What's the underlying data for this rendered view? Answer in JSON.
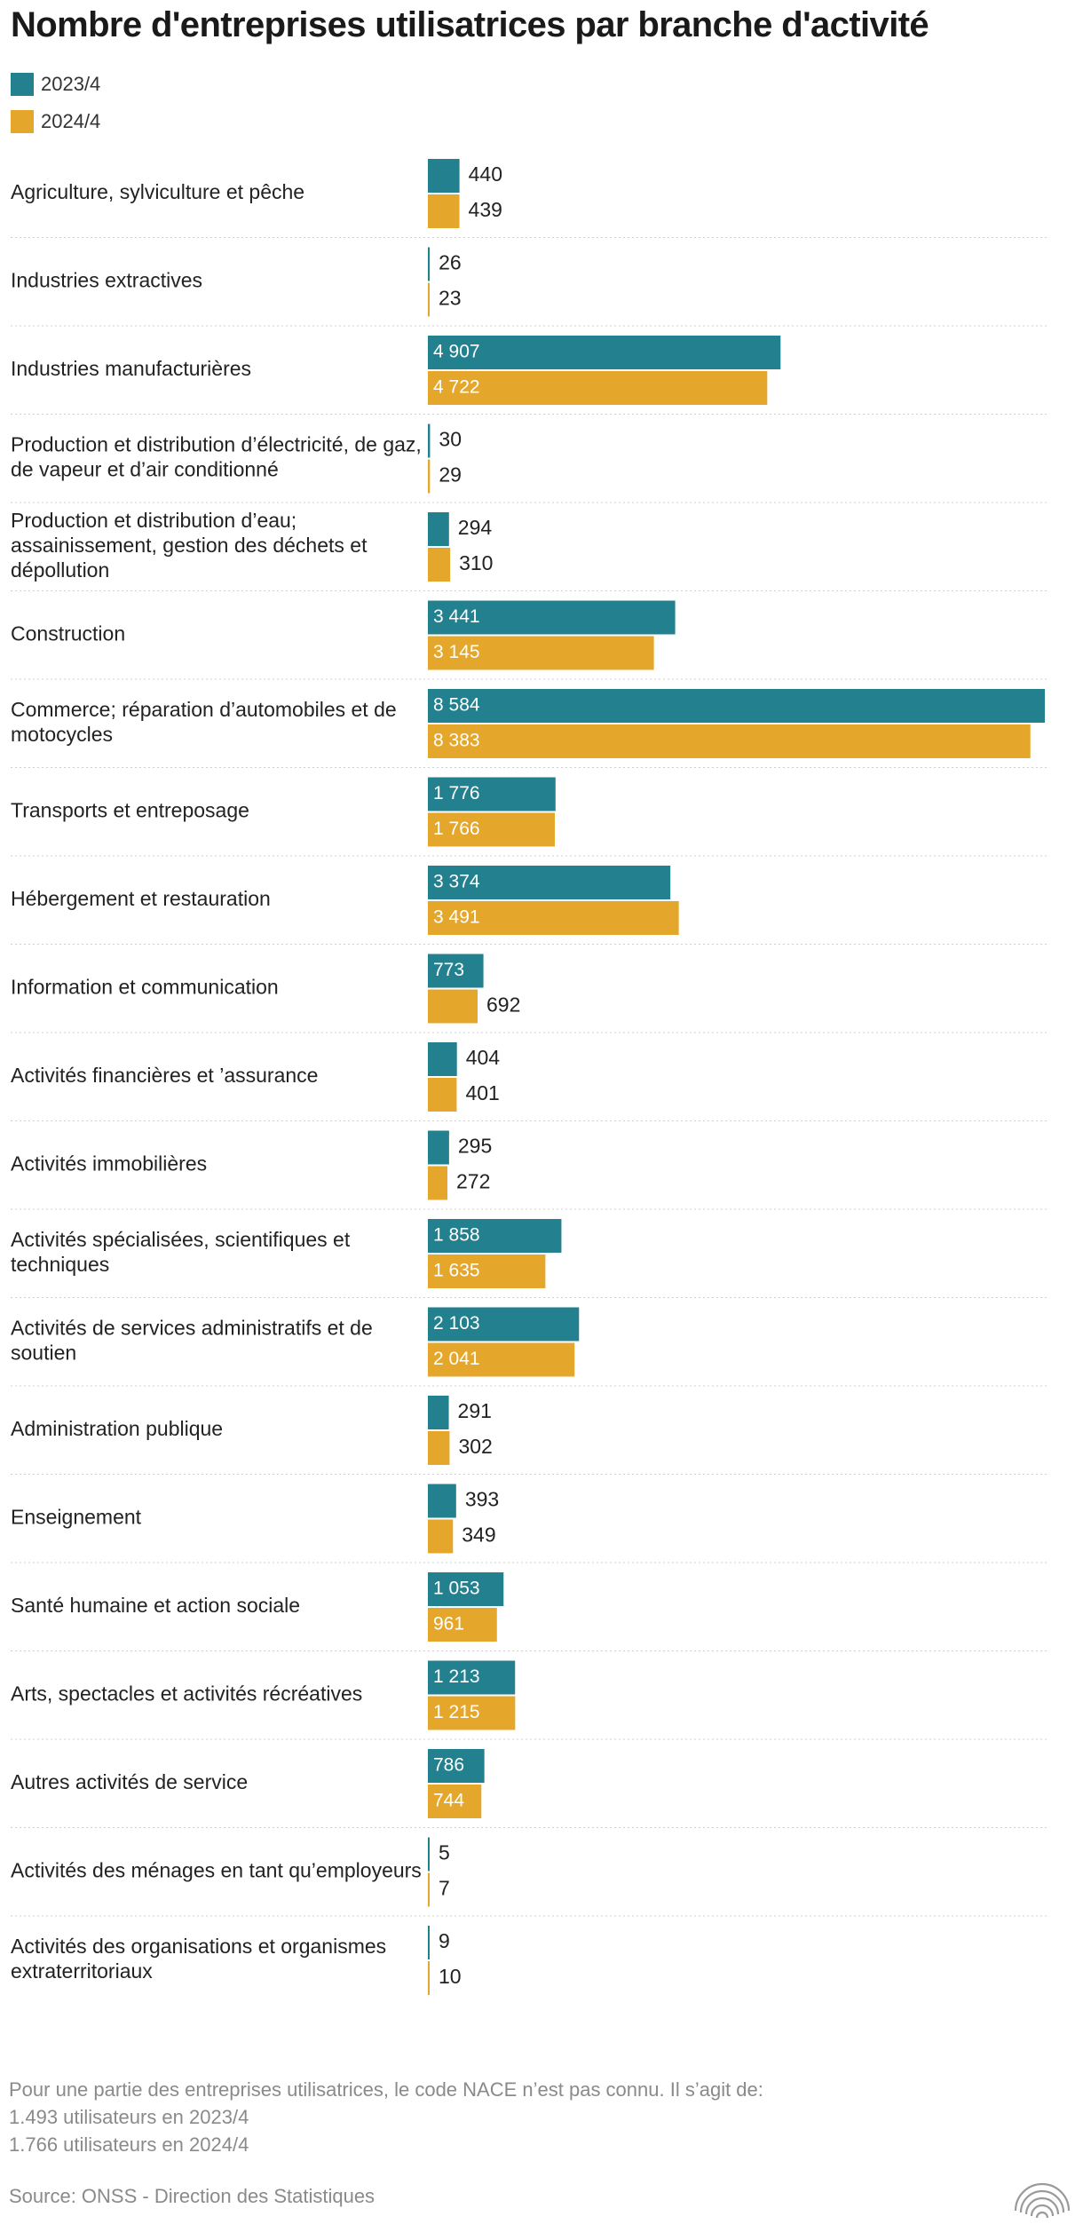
{
  "chart_data": {
    "type": "bar",
    "orientation": "horizontal",
    "title": "Nombre d'entreprises utilisatrices par branche d'activité",
    "xlabel": "",
    "ylabel": "",
    "xlim": [
      0,
      8584
    ],
    "grid": false,
    "legend_position": "top-left",
    "categories": [
      [
        "Agriculture, sylviculture et pêche"
      ],
      [
        "Industries extractives"
      ],
      [
        "Industries manufacturières"
      ],
      [
        "Production et distribution d’électricité, de gaz,",
        "de vapeur et d’air conditionné"
      ],
      [
        "Production et distribution d’eau;",
        "assainissement, gestion des déchets et",
        "dépollution"
      ],
      [
        "Construction"
      ],
      [
        "Commerce; réparation d’automobiles et de",
        "motocycles"
      ],
      [
        "Transports et entreposage"
      ],
      [
        "Hébergement et restauration"
      ],
      [
        "Information et communication"
      ],
      [
        "Activités financières et ’assurance"
      ],
      [
        "Activités immobilières"
      ],
      [
        "Activités spécialisées, scientifiques et",
        "techniques"
      ],
      [
        "Activités de services administratifs et de",
        "soutien"
      ],
      [
        "Administration publique"
      ],
      [
        "Enseignement"
      ],
      [
        "Santé humaine et action sociale"
      ],
      [
        "Arts, spectacles et activités récréatives"
      ],
      [
        "Autres activités de service"
      ],
      [
        "Activités des ménages en tant qu’employeurs"
      ],
      [
        "Activités des organisations et organismes",
        "extraterritoriaux"
      ]
    ],
    "series": [
      {
        "name": "2023/4",
        "color": "#23808e",
        "values": [
          440,
          26,
          4907,
          30,
          294,
          3441,
          8584,
          1776,
          3374,
          773,
          404,
          295,
          1858,
          2103,
          291,
          393,
          1053,
          1213,
          786,
          5,
          9
        ],
        "labels": [
          "440",
          "26",
          "4 907",
          "30",
          "294",
          "3 441",
          "8 584",
          "1 776",
          "3 374",
          "773",
          "404",
          "295",
          "1 858",
          "2 103",
          "291",
          "393",
          "1 053",
          "1 213",
          "786",
          "5",
          "9"
        ]
      },
      {
        "name": "2024/4",
        "color": "#e5a72b",
        "values": [
          439,
          23,
          4722,
          29,
          310,
          3145,
          8383,
          1766,
          3491,
          692,
          401,
          272,
          1635,
          2041,
          302,
          349,
          961,
          1215,
          744,
          7,
          10
        ],
        "labels": [
          "439",
          "23",
          "4 722",
          "29",
          "310",
          "3 145",
          "8 383",
          "1 766",
          "3 491",
          "692",
          "401",
          "272",
          "1 635",
          "2 041",
          "302",
          "349",
          "961",
          "1 215",
          "744",
          "7",
          "10"
        ]
      }
    ]
  },
  "footnote": {
    "line1": "Pour une partie des entreprises utilisatrices, le code NACE n’est pas connu. Il s’agit de:",
    "line2": "1.493 utilisateurs en 2023/4",
    "line3": "1.766 utilisateurs en 2024/4"
  },
  "source": "Source: ONSS - Direction des Statistiques",
  "logo_icon": "publisher-logo-icon"
}
